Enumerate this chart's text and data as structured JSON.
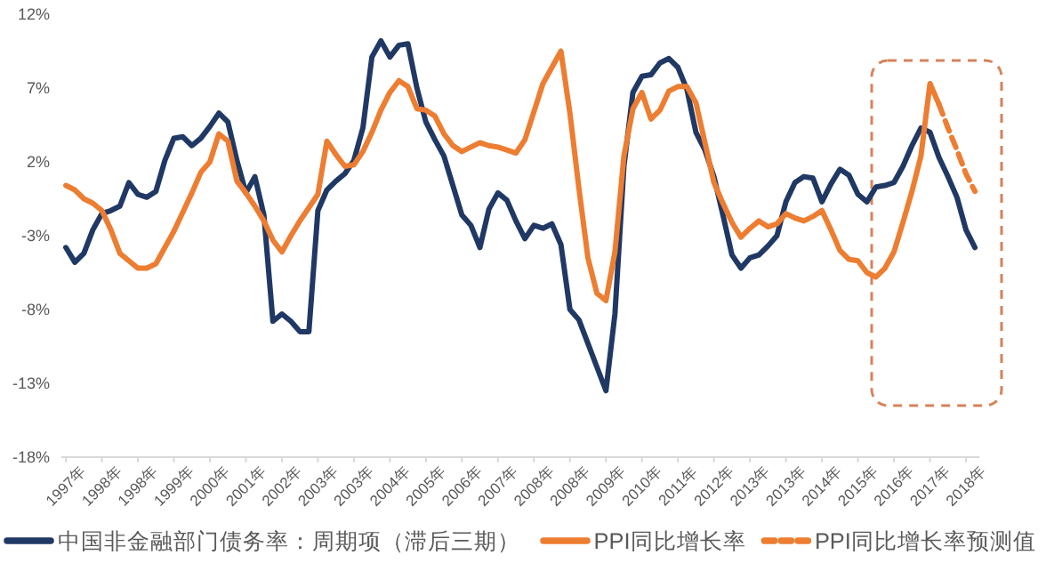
{
  "chart_data": {
    "type": "line",
    "ylim": [
      -18,
      12
    ],
    "categories": [
      "1997年",
      null,
      null,
      null,
      "1998年",
      null,
      null,
      null,
      "1998年",
      null,
      null,
      null,
      "1999年",
      null,
      null,
      null,
      "2000年",
      null,
      null,
      null,
      "2001年",
      null,
      null,
      null,
      "2002年",
      null,
      null,
      null,
      "2003年",
      null,
      null,
      null,
      "2003年",
      null,
      null,
      null,
      "2004年",
      null,
      null,
      null,
      "2005年",
      null,
      null,
      null,
      "2006年",
      null,
      null,
      null,
      "2007年",
      null,
      null,
      null,
      "2008年",
      null,
      null,
      null,
      "2008年",
      null,
      null,
      null,
      "2009年",
      null,
      null,
      null,
      "2010年",
      null,
      null,
      null,
      "2011年",
      null,
      null,
      null,
      "2012年",
      null,
      null,
      null,
      "2013年",
      null,
      null,
      null,
      "2013年",
      null,
      null,
      null,
      "2014年",
      null,
      null,
      null,
      "2015年",
      null,
      null,
      null,
      "2016年",
      null,
      null,
      null,
      "2017年",
      null,
      null,
      null,
      "2018年",
      null
    ],
    "yticks": [
      {
        "value": 12,
        "label": "12%"
      },
      {
        "value": 7,
        "label": "7%"
      },
      {
        "value": 2,
        "label": "2%"
      },
      {
        "value": -3,
        "label": "-3%"
      },
      {
        "value": -8,
        "label": "-8%"
      },
      {
        "value": -13,
        "label": "-13%"
      },
      {
        "value": -18,
        "label": "-18%"
      }
    ],
    "legend": "bottom",
    "series": [
      {
        "name": "中国非金融部门债务率：周期项（滞后三期）",
        "color": "#203864",
        "values": [
          -3.8,
          -4.8,
          -4.2,
          -2.6,
          -1.5,
          -1.3,
          -1.0,
          0.6,
          -0.2,
          -0.4,
          0.0,
          2.1,
          3.6,
          3.7,
          3.1,
          3.6,
          4.4,
          5.3,
          4.7,
          2.1,
          -0.1,
          1.0,
          -1.6,
          -8.8,
          -8.3,
          -8.8,
          -9.5,
          -9.5,
          -1.3,
          0.1,
          0.7,
          1.2,
          2.1,
          4.3,
          9.1,
          10.2,
          9.1,
          9.9,
          10.0,
          7.0,
          4.7,
          3.5,
          2.4,
          0.4,
          -1.6,
          -2.3,
          -3.8,
          -1.2,
          -0.1,
          -0.6,
          -2.0,
          -3.2,
          -2.3,
          -2.5,
          -2.2,
          -3.6,
          -8.0,
          -8.7,
          -10.3,
          -11.9,
          -13.5,
          -8.3,
          1.7,
          6.7,
          7.8,
          7.9,
          8.7,
          9.0,
          8.4,
          6.9,
          4.0,
          2.8,
          1.0,
          -1.6,
          -4.3,
          -5.2,
          -4.5,
          -4.3,
          -3.7,
          -3.0,
          -0.7,
          0.6,
          1.0,
          0.9,
          -0.7,
          0.5,
          1.5,
          1.1,
          -0.2,
          -0.7,
          0.3,
          0.4,
          0.6,
          1.7,
          3.1,
          4.3,
          4.0,
          2.3,
          1.0,
          -0.4,
          -2.6,
          -3.8
        ]
      },
      {
        "name": "PPI同比增长率",
        "color": "#ed7d31",
        "values": [
          0.4,
          0.1,
          -0.5,
          -0.8,
          -1.3,
          -2.6,
          -4.2,
          -4.7,
          -5.2,
          -5.2,
          -4.9,
          -3.8,
          -2.7,
          -1.4,
          -0.1,
          1.3,
          2.0,
          3.9,
          3.4,
          0.7,
          -0.1,
          -1.0,
          -2.0,
          -3.3,
          -4.1,
          -3.0,
          -2.0,
          -1.1,
          -0.2,
          3.4,
          2.5,
          1.7,
          1.8,
          2.7,
          4.0,
          5.5,
          6.7,
          7.5,
          7.1,
          5.6,
          5.5,
          5.1,
          3.9,
          3.1,
          2.7,
          3.0,
          3.3,
          3.1,
          3.0,
          2.8,
          2.6,
          3.5,
          5.4,
          7.3,
          8.4,
          9.5,
          5.3,
          0.2,
          -4.5,
          -6.9,
          -7.4,
          -4.1,
          2.4,
          5.6,
          6.7,
          4.9,
          5.5,
          6.8,
          7.1,
          7.1,
          6.0,
          3.3,
          0.6,
          -0.8,
          -2.1,
          -3.1,
          -2.5,
          -2.0,
          -2.4,
          -2.2,
          -1.5,
          -1.8,
          -2.0,
          -1.7,
          -1.3,
          -2.6,
          -4.0,
          -4.6,
          -4.7,
          -5.5,
          -5.8,
          -5.2,
          -4.1,
          -2.1,
          0.0,
          2.4,
          7.3,
          5.9,
          null,
          null,
          null,
          null
        ]
      },
      {
        "name": "PPI同比增长率预测值",
        "color": "#ed7d31",
        "line_style": "dashed",
        "values": [
          null,
          null,
          null,
          null,
          null,
          null,
          null,
          null,
          null,
          null,
          null,
          null,
          null,
          null,
          null,
          null,
          null,
          null,
          null,
          null,
          null,
          null,
          null,
          null,
          null,
          null,
          null,
          null,
          null,
          null,
          null,
          null,
          null,
          null,
          null,
          null,
          null,
          null,
          null,
          null,
          null,
          null,
          null,
          null,
          null,
          null,
          null,
          null,
          null,
          null,
          null,
          null,
          null,
          null,
          null,
          null,
          null,
          null,
          null,
          null,
          null,
          null,
          null,
          null,
          null,
          null,
          null,
          null,
          null,
          null,
          null,
          null,
          null,
          null,
          null,
          null,
          null,
          null,
          null,
          null,
          null,
          null,
          null,
          null,
          null,
          null,
          null,
          null,
          null,
          null,
          null,
          null,
          null,
          null,
          null,
          null,
          null,
          5.9,
          4.3,
          2.8,
          1.2,
          0.0
        ]
      }
    ]
  }
}
